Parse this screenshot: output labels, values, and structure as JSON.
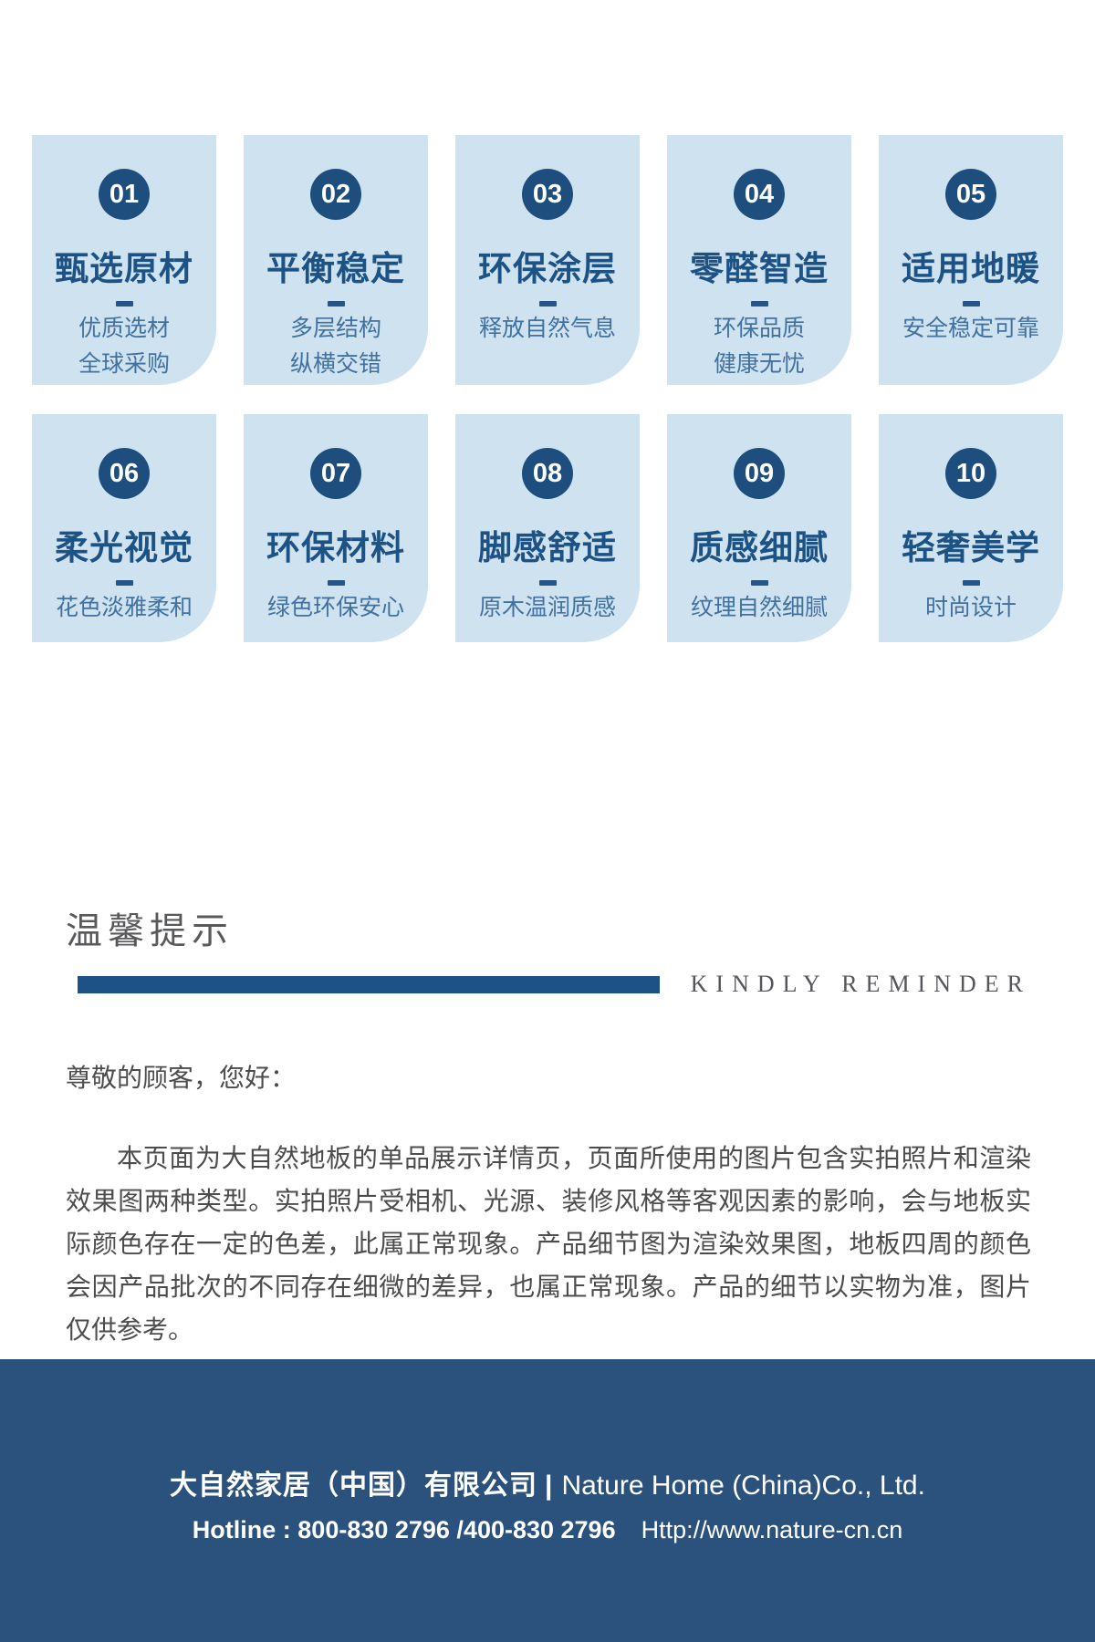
{
  "features": {
    "divider": "-",
    "cards": [
      {
        "num": "01",
        "title": "甄选原材",
        "lines": [
          "优质选材",
          "全球采购"
        ]
      },
      {
        "num": "02",
        "title": "平衡稳定",
        "lines": [
          "多层结构",
          "纵横交错"
        ]
      },
      {
        "num": "03",
        "title": "环保涂层",
        "lines": [
          "释放自然气息"
        ]
      },
      {
        "num": "04",
        "title": "零醛智造",
        "lines": [
          "环保品质",
          "健康无忧"
        ]
      },
      {
        "num": "05",
        "title": "适用地暖",
        "lines": [
          "安全稳定可靠"
        ]
      },
      {
        "num": "06",
        "title": "柔光视觉",
        "lines": [
          "花色淡雅柔和"
        ]
      },
      {
        "num": "07",
        "title": "环保材料",
        "lines": [
          "绿色环保安心"
        ]
      },
      {
        "num": "08",
        "title": "脚感舒适",
        "lines": [
          "原木温润质感"
        ]
      },
      {
        "num": "09",
        "title": "质感细腻",
        "lines": [
          "纹理自然细腻"
        ]
      },
      {
        "num": "10",
        "title": "轻奢美学",
        "lines": [
          "时尚设计"
        ]
      }
    ]
  },
  "reminder": {
    "title_cn": "温馨提示",
    "title_en": "KINDLY REMINDER",
    "greeting": "尊敬的顾客，您好：",
    "body": "本页面为大自然地板的单品展示详情页，页面所使用的图片包含实拍照片和渲染效果图两种类型。实拍照片受相机、光源、装修风格等客观因素的影响，会与地板实际颜色存在一定的色差，此属正常现象。产品细节图为渲染效果图，地板四周的颜色会因产品批次的不同存在细微的差异，也属正常现象。产品的细节以实物为准，图片仅供参考。"
  },
  "footer": {
    "company_cn": "大自然家居（中国）有限公司",
    "separator": "|",
    "company_en": "Nature Home (China)Co., Ltd.",
    "hotline_label": "Hotline : ",
    "hotline_numbers": "800-830 2796 /400-830 2796",
    "website": "Http://www.nature-cn.cn"
  },
  "colors": {
    "card_bg": "#cfe2f0",
    "badge_navy": "#1d4e7d",
    "title_blue": "#1d5285",
    "subtitle_blue": "#40719f",
    "bar_blue": "#1d5286",
    "footer_navy": "#2b527c",
    "text_gray": "#4c4c4c"
  }
}
